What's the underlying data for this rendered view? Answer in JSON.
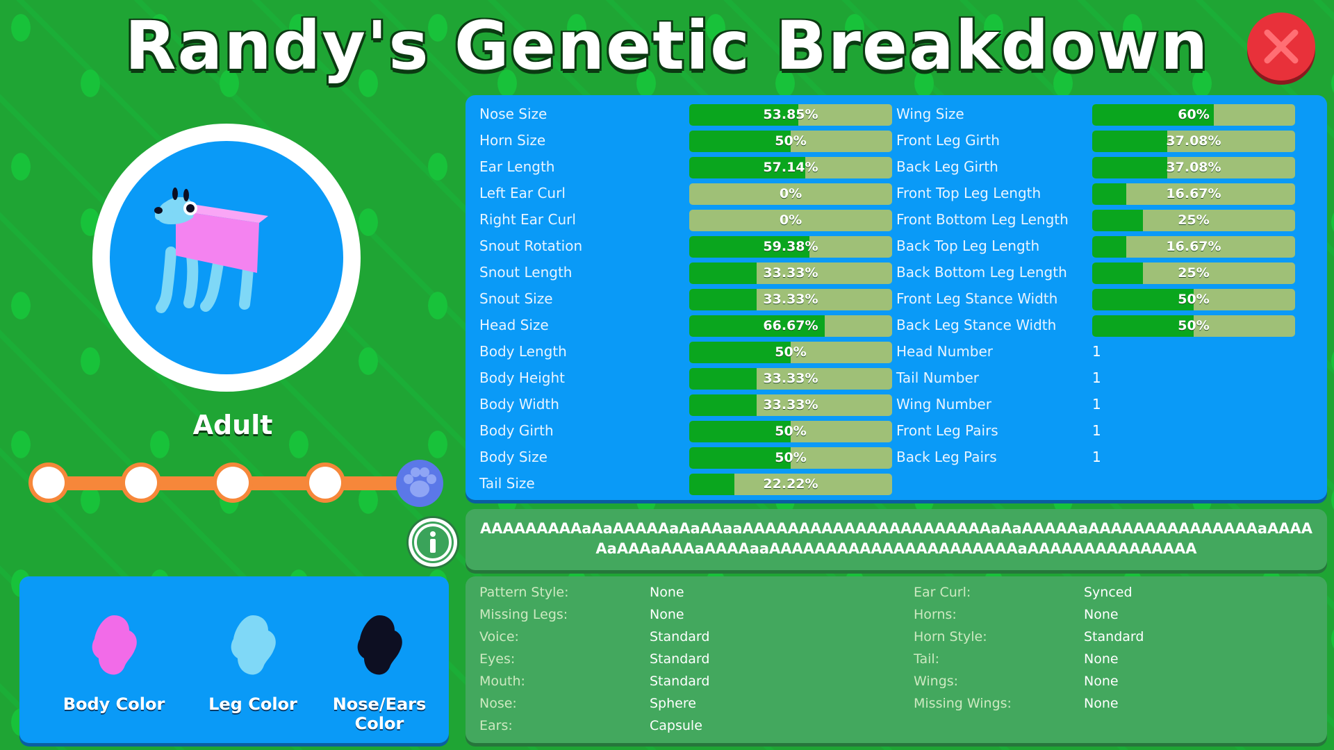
{
  "title": "Randy's Genetic Breakdown",
  "stage": "Adult",
  "slider": {
    "nodes": 5,
    "selected_index": 4
  },
  "colors": [
    {
      "label": "Body Color",
      "color": "#f26be8"
    },
    {
      "label": "Leg Color",
      "color": "#7fd8f7"
    },
    {
      "label": "Nose/Ears Color",
      "color": "#0d0f22"
    }
  ],
  "genes_left": [
    {
      "label": "Nose Size",
      "value": 53.85,
      "text": "53.85%"
    },
    {
      "label": "Horn Size",
      "value": 50,
      "text": "50%"
    },
    {
      "label": "Ear Length",
      "value": 57.14,
      "text": "57.14%"
    },
    {
      "label": "Left Ear Curl",
      "value": 0,
      "text": "0%"
    },
    {
      "label": "Right Ear Curl",
      "value": 0,
      "text": "0%"
    },
    {
      "label": "Snout Rotation",
      "value": 59.38,
      "text": "59.38%"
    },
    {
      "label": "Snout Length",
      "value": 33.33,
      "text": "33.33%"
    },
    {
      "label": "Snout Size",
      "value": 33.33,
      "text": "33.33%"
    },
    {
      "label": "Head Size",
      "value": 66.67,
      "text": "66.67%"
    },
    {
      "label": "Body Length",
      "value": 50,
      "text": "50%"
    },
    {
      "label": "Body Height",
      "value": 33.33,
      "text": "33.33%"
    },
    {
      "label": "Body Width",
      "value": 33.33,
      "text": "33.33%"
    },
    {
      "label": "Body Girth",
      "value": 50,
      "text": "50%"
    },
    {
      "label": "Body Size",
      "value": 50,
      "text": "50%"
    },
    {
      "label": "Tail Size",
      "value": 22.22,
      "text": "22.22%"
    }
  ],
  "genes_right": [
    {
      "label": "Wing Size",
      "value": 60,
      "text": "60%"
    },
    {
      "label": "Front Leg Girth",
      "value": 37.08,
      "text": "37.08%"
    },
    {
      "label": "Back Leg Girth",
      "value": 37.08,
      "text": "37.08%"
    },
    {
      "label": "Front Top Leg Length",
      "value": 16.67,
      "text": "16.67%"
    },
    {
      "label": "Front Bottom Leg Length",
      "value": 25,
      "text": "25%"
    },
    {
      "label": "Back Top Leg Length",
      "value": 16.67,
      "text": "16.67%"
    },
    {
      "label": "Back Bottom Leg Length",
      "value": 25,
      "text": "25%"
    },
    {
      "label": "Front Leg Stance Width",
      "value": 50,
      "text": "50%"
    },
    {
      "label": "Back Leg Stance Width",
      "value": 50,
      "text": "50%"
    }
  ],
  "counts": [
    {
      "label": "Head Number",
      "value": "1"
    },
    {
      "label": "Tail Number",
      "value": "1"
    },
    {
      "label": "Wing Number",
      "value": "1"
    },
    {
      "label": "Front Leg Pairs",
      "value": "1"
    },
    {
      "label": "Back Leg Pairs",
      "value": "1"
    }
  ],
  "dna_sequence": "AAAAAAAAAaAaAAAAAaAaAAaaAAAAAAAAAAAAAAAAAAAAAAaAaAAAAAaAAAAAAAAAAAAAAAaAAAAAaAAAaAAAaAAAAaaAAAAAAAAAAAAAAAAAAAAAAaAAAAAAAAAAAAAAA",
  "traits_left": [
    {
      "key": "Pattern Style:",
      "value": "None"
    },
    {
      "key": "Missing Legs:",
      "value": "None"
    },
    {
      "key": "Voice:",
      "value": "Standard"
    },
    {
      "key": "Eyes:",
      "value": "Standard"
    },
    {
      "key": "Mouth:",
      "value": "Standard"
    },
    {
      "key": "Nose:",
      "value": "Sphere"
    },
    {
      "key": "Ears:",
      "value": "Capsule"
    }
  ],
  "traits_right": [
    {
      "key": "Ear Curl:",
      "value": "Synced"
    },
    {
      "key": "Horns:",
      "value": "None"
    },
    {
      "key": "Horn Style:",
      "value": "Standard"
    },
    {
      "key": "Tail:",
      "value": "None"
    },
    {
      "key": "Wings:",
      "value": "None"
    },
    {
      "key": "Missing Wings:",
      "value": "None"
    }
  ],
  "icons": {
    "close": "close-x-icon",
    "info": "info-icon",
    "paw": "paw-icon",
    "creature": "creature-portrait"
  }
}
